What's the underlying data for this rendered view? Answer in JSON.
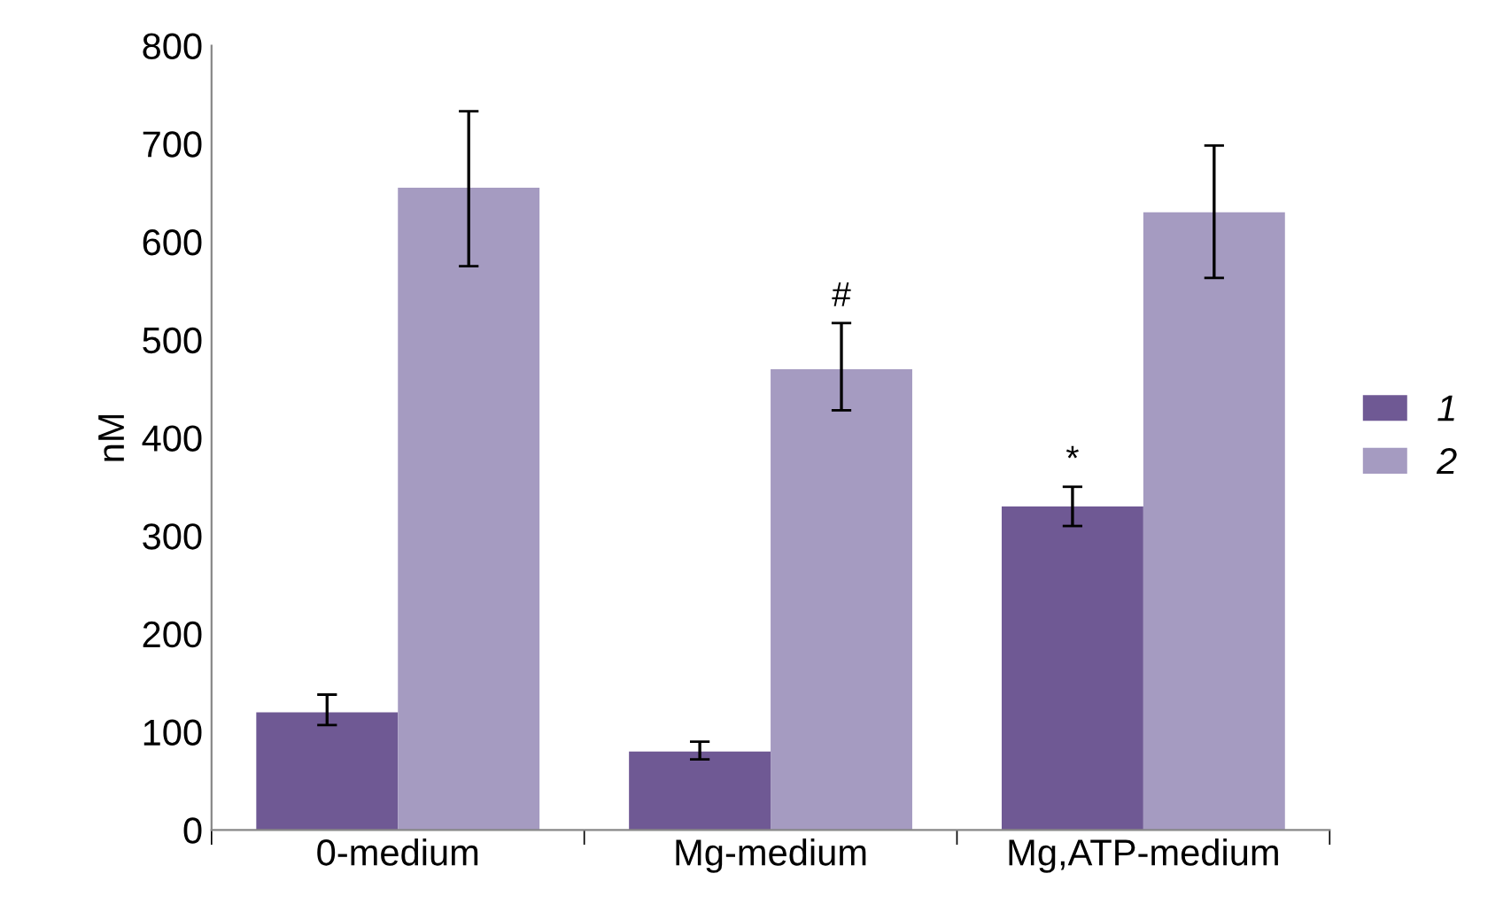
{
  "chart_data": {
    "type": "bar",
    "ylabel": "nM",
    "categories": [
      "0-medium",
      "Mg-medium",
      "Mg,ATP-medium"
    ],
    "series": [
      {
        "name": "1",
        "color": "#6f5994",
        "values": [
          120,
          80,
          330
        ],
        "errors": [
          [
            107,
            138
          ],
          [
            72,
            90
          ],
          [
            310,
            350
          ]
        ]
      },
      {
        "name": "2",
        "color": "#a59bc1",
        "values": [
          655,
          470,
          630
        ],
        "errors": [
          [
            575,
            733
          ],
          [
            428,
            517
          ],
          [
            563,
            698
          ]
        ]
      }
    ],
    "annotations": [
      {
        "text": "#",
        "x": "Mg-medium",
        "y": 470
      },
      {
        "text": "*",
        "x": "Mg,ATP-medium",
        "y": 330
      }
    ],
    "ylim": [
      0,
      800
    ],
    "yticks": [
      0,
      100,
      200,
      300,
      400,
      500,
      600,
      700,
      800
    ],
    "grid": false,
    "legend": "right"
  }
}
